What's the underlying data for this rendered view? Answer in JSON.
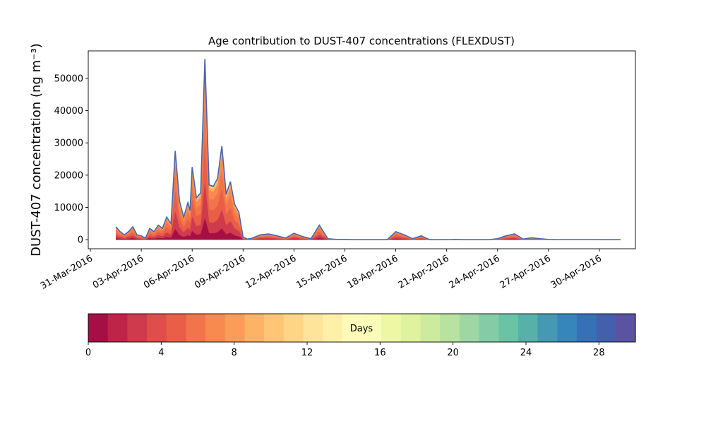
{
  "chart_data": {
    "type": "area",
    "title": "Age contribution to DUST-407 concentrations (FLEXDUST)",
    "ylabel": "DUST-407 concentration (ng m⁻³)",
    "xlabel": "",
    "x_axis": "date",
    "xlim": [
      "2016-03-30T21:00",
      "2016-05-02T03:00"
    ],
    "ylim": [
      -2800,
      58500
    ],
    "x_ticks": [
      {
        "date": "2016-03-31",
        "label": "31-Mar-2016"
      },
      {
        "date": "2016-04-03",
        "label": "03-Apr-2016"
      },
      {
        "date": "2016-04-06",
        "label": "06-Apr-2016"
      },
      {
        "date": "2016-04-09",
        "label": "09-Apr-2016"
      },
      {
        "date": "2016-04-12",
        "label": "12-Apr-2016"
      },
      {
        "date": "2016-04-15",
        "label": "15-Apr-2016"
      },
      {
        "date": "2016-04-18",
        "label": "18-Apr-2016"
      },
      {
        "date": "2016-04-21",
        "label": "21-Apr-2016"
      },
      {
        "date": "2016-04-24",
        "label": "24-Apr-2016"
      },
      {
        "date": "2016-04-27",
        "label": "27-Apr-2016"
      },
      {
        "date": "2016-04-30",
        "label": "30-Apr-2016"
      }
    ],
    "y_ticks": [
      0,
      10000,
      20000,
      30000,
      40000,
      50000
    ],
    "y_tick_labels": [
      "0",
      "10000",
      "20000",
      "30000",
      "40000",
      "50000"
    ],
    "grid": false,
    "legend": "none",
    "total_series": {
      "x": [
        "2016-04-01T12:00",
        "2016-04-01T18:00",
        "2016-04-02T00:00",
        "2016-04-02T06:00",
        "2016-04-02T12:00",
        "2016-04-02T18:00",
        "2016-04-03T00:00",
        "2016-04-03T06:00",
        "2016-04-03T12:00",
        "2016-04-03T18:00",
        "2016-04-04T00:00",
        "2016-04-04T06:00",
        "2016-04-04T12:00",
        "2016-04-04T18:00",
        "2016-04-05T00:00",
        "2016-04-05T06:00",
        "2016-04-05T12:00",
        "2016-04-05T18:00",
        "2016-04-05T21:00",
        "2016-04-06T00:00",
        "2016-04-06T06:00",
        "2016-04-06T12:00",
        "2016-04-06T18:00",
        "2016-04-07T00:00",
        "2016-04-07T06:00",
        "2016-04-07T12:00",
        "2016-04-07T18:00",
        "2016-04-07T21:00",
        "2016-04-08T00:00",
        "2016-04-08T06:00",
        "2016-04-08T12:00",
        "2016-04-08T18:00",
        "2016-04-09T00:00",
        "2016-04-09T06:00",
        "2016-04-09T12:00",
        "2016-04-10T00:00",
        "2016-04-10T12:00",
        "2016-04-11T00:00",
        "2016-04-11T12:00",
        "2016-04-12T00:00",
        "2016-04-12T12:00",
        "2016-04-13T00:00",
        "2016-04-13T12:00",
        "2016-04-14T00:00",
        "2016-04-14T12:00",
        "2016-04-15T00:00",
        "2016-04-15T12:00",
        "2016-04-16T00:00",
        "2016-04-16T12:00",
        "2016-04-17T00:00",
        "2016-04-17T12:00",
        "2016-04-18T00:00",
        "2016-04-18T12:00",
        "2016-04-19T00:00",
        "2016-04-19T12:00",
        "2016-04-20T00:00",
        "2016-04-20T12:00",
        "2016-04-21T00:00",
        "2016-04-21T12:00",
        "2016-04-22T00:00",
        "2016-04-22T12:00",
        "2016-04-23T00:00",
        "2016-04-23T12:00",
        "2016-04-24T00:00",
        "2016-04-24T12:00",
        "2016-04-25T00:00",
        "2016-04-25T12:00",
        "2016-04-26T00:00",
        "2016-04-26T12:00",
        "2016-04-27T00:00",
        "2016-04-27T12:00",
        "2016-04-28T00:00",
        "2016-04-28T12:00",
        "2016-04-29T00:00",
        "2016-04-29T12:00",
        "2016-04-30T00:00",
        "2016-04-30T12:00",
        "2016-05-01T00:00",
        "2016-05-01T06:00"
      ],
      "values": [
        4000,
        2500,
        1500,
        2500,
        4000,
        1500,
        1200,
        500,
        3500,
        2500,
        4500,
        3500,
        7000,
        5000,
        27500,
        12000,
        7000,
        11500,
        9000,
        22500,
        13000,
        14500,
        56000,
        17000,
        16500,
        19000,
        29000,
        22000,
        14000,
        18000,
        11000,
        8500,
        800,
        200,
        400,
        1500,
        1800,
        1200,
        500,
        2000,
        1000,
        300,
        4500,
        300,
        100,
        100,
        0,
        0,
        0,
        0,
        0,
        2500,
        1500,
        300,
        1200,
        0,
        0,
        0,
        100,
        0,
        0,
        0,
        0,
        300,
        1200,
        1800,
        200,
        600,
        300,
        100,
        50,
        50,
        50,
        50,
        50,
        0,
        0,
        0,
        0
      ]
    },
    "color_scale": {
      "label": "Days",
      "min": 0,
      "max": 30,
      "ticks": [
        0,
        4,
        8,
        12,
        16,
        20,
        24,
        28
      ],
      "colormap": "Spectral",
      "colors": [
        "#a50f45",
        "#be2448",
        "#cf3a4c",
        "#df4e4b",
        "#e95e47",
        "#f2744a",
        "#f8894f",
        "#fb9c58",
        "#fdb365",
        "#fdc574",
        "#fdd585",
        "#fee49a",
        "#fef0a8",
        "#fefbb9",
        "#f9fcb8",
        "#eef8a4",
        "#dff29d",
        "#cdeb9d",
        "#b8e29f",
        "#9ed7a3",
        "#84cca5",
        "#6bc3a6",
        "#57b0aa",
        "#4599b2",
        "#3685bb",
        "#3671b8",
        "#4460ac",
        "#5a53a1"
      ]
    }
  }
}
